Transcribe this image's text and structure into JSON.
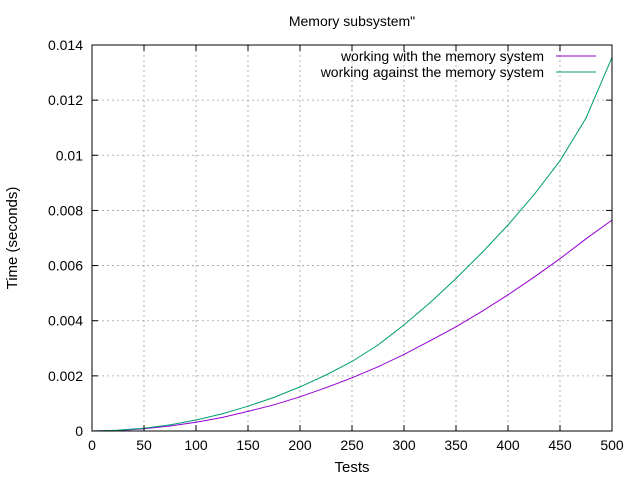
{
  "chart_data": {
    "type": "line",
    "title": "Memory subsystem\"",
    "xlabel": "Tests",
    "ylabel": "Time (seconds)",
    "xlim": [
      0,
      500
    ],
    "ylim": [
      0,
      0.014
    ],
    "x_ticks": [
      0,
      50,
      100,
      150,
      200,
      250,
      300,
      350,
      400,
      450,
      500
    ],
    "x_tick_labels": [
      "0",
      "50",
      "100",
      "150",
      "200",
      "250",
      "300",
      "350",
      "400",
      "450",
      "500"
    ],
    "y_ticks": [
      0,
      0.002,
      0.004,
      0.006,
      0.008,
      0.01,
      0.012,
      0.014
    ],
    "y_tick_labels": [
      "0",
      "0.002",
      "0.004",
      "0.006",
      "0.008",
      "0.01",
      "0.012",
      "0.014"
    ],
    "grid": true,
    "legend_position": "top-right",
    "series": [
      {
        "name": "working with the memory system",
        "color": "#9400d3",
        "x": [
          0,
          25,
          50,
          75,
          100,
          125,
          150,
          175,
          200,
          225,
          250,
          275,
          300,
          325,
          350,
          375,
          400,
          425,
          450,
          475,
          500
        ],
        "values": [
          0.0,
          2e-05,
          8e-05,
          0.00018,
          0.00032,
          0.00049,
          0.00071,
          0.00095,
          0.00124,
          0.00157,
          0.00193,
          0.00233,
          0.00278,
          0.00327,
          0.00378,
          0.00434,
          0.00494,
          0.00558,
          0.00625,
          0.00697,
          0.00765
        ]
      },
      {
        "name": "working against the memory system",
        "color": "#009e73",
        "x": [
          0,
          25,
          50,
          75,
          100,
          125,
          150,
          175,
          200,
          225,
          250,
          275,
          300,
          325,
          350,
          375,
          400,
          425,
          450,
          475,
          500
        ],
        "values": [
          0.0,
          3e-05,
          0.0001,
          0.00022,
          0.0004,
          0.00062,
          0.0009,
          0.00122,
          0.0016,
          0.00203,
          0.00252,
          0.00312,
          0.00385,
          0.00465,
          0.00553,
          0.00647,
          0.00747,
          0.00857,
          0.0098,
          0.01135,
          0.01355
        ]
      }
    ]
  }
}
